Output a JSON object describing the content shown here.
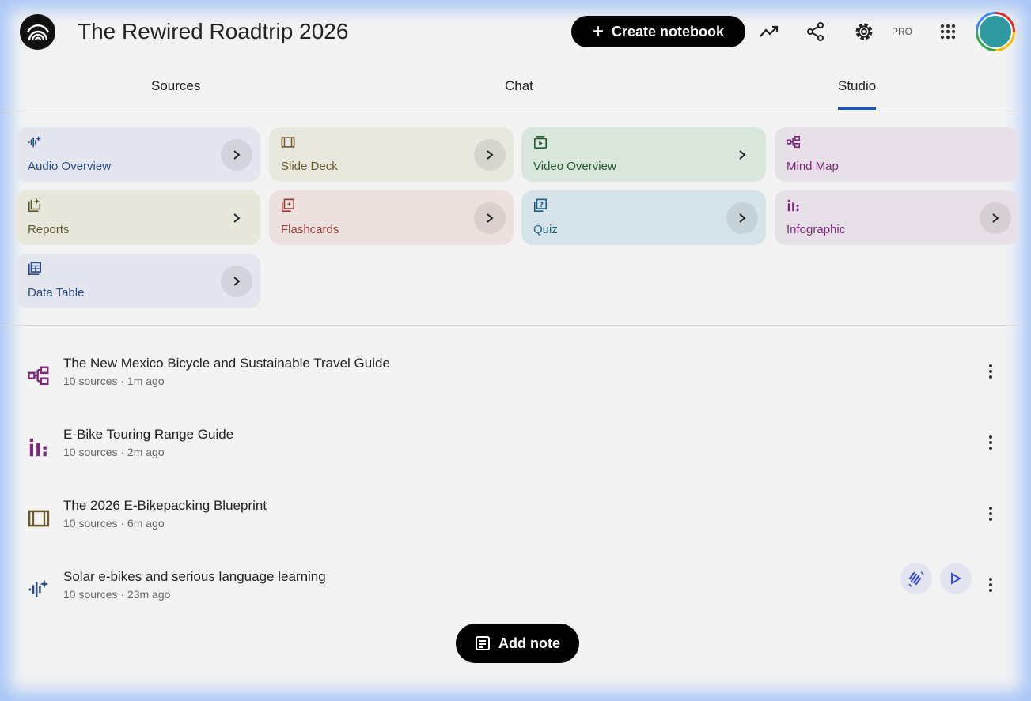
{
  "header": {
    "title": "The Rewired Roadtrip 2026",
    "create_label": "Create notebook",
    "pro_label": "PRO",
    "icons": [
      "analytics-icon",
      "share-icon",
      "settings-icon",
      "apps-icon"
    ]
  },
  "tabs": [
    {
      "label": "Sources"
    },
    {
      "label": "Chat"
    },
    {
      "label": "Studio",
      "active": true
    }
  ],
  "studio_tools": [
    {
      "label": "Audio Overview",
      "icon": "audio-waveform-icon",
      "bg": "#e3e6ef",
      "color": "#2b4a8a"
    },
    {
      "label": "Slide Deck",
      "icon": "slides-icon",
      "bg": "#e9e8df",
      "color": "#6b5a2e"
    },
    {
      "label": "Video Overview",
      "icon": "video-icon",
      "bg": "#d9e6dc",
      "color": "#245a2f"
    },
    {
      "label": "Mind Map",
      "icon": "mind-map-icon",
      "bg": "#e8e0e8",
      "color": "#7a2a78"
    },
    {
      "label": "Reports",
      "icon": "reports-icon",
      "bg": "#e8e7dc",
      "color": "#5f5530"
    },
    {
      "label": "Flashcards",
      "icon": "flashcards-icon",
      "bg": "#ede1df",
      "color": "#9a3a36"
    },
    {
      "label": "Quiz",
      "icon": "quiz-icon",
      "bg": "#d6e4ea",
      "color": "#1f5f86"
    },
    {
      "label": "Infographic",
      "icon": "infographic-icon",
      "bg": "#e8e0e8",
      "color": "#7a2a78"
    },
    {
      "label": "Data Table",
      "icon": "data-table-icon",
      "bg": "#e3e6ef",
      "color": "#2b4a8a"
    }
  ],
  "notes": [
    {
      "title": "The New Mexico Bicycle and Sustainable Travel Guide",
      "meta": "10 sources · 1m ago",
      "icon": "mind-map-icon",
      "color": "#7a2a78"
    },
    {
      "title": "E-Bike Touring Range Guide",
      "meta": "10 sources · 2m ago",
      "icon": "infographic-icon",
      "color": "#7a2a78"
    },
    {
      "title": "The 2026 E-Bikepacking Blueprint",
      "meta": "10 sources · 6m ago",
      "icon": "slides-icon",
      "color": "#6b5a2e"
    },
    {
      "title": "Solar e-bikes and serious language learning",
      "meta": "10 sources · 23m ago",
      "icon": "audio-waveform-icon",
      "color": "#2b4a8a"
    }
  ],
  "add_note_label": "Add note"
}
